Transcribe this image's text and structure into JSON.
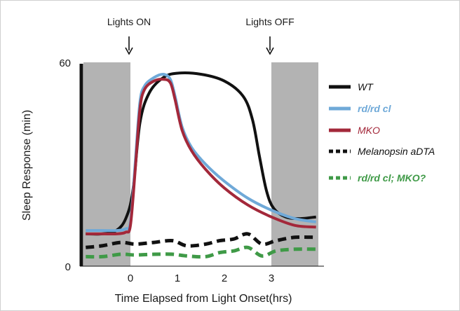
{
  "chart_data": {
    "type": "line",
    "title": "",
    "xlabel": "Time Elapsed from Light Onset(hrs)",
    "ylabel": "Sleep Response (min)",
    "xlim": [
      -1,
      4
    ],
    "ylim": [
      0,
      60
    ],
    "x_ticks": [
      "0",
      "1",
      "2",
      "3"
    ],
    "x_tick_values": [
      0,
      1,
      2,
      3
    ],
    "y_ticks": [
      "0",
      "60"
    ],
    "y_tick_values": [
      0,
      60
    ],
    "shaded_regions": [
      {
        "x_start": -1,
        "x_end": 0,
        "color": "#b3b3b3"
      },
      {
        "x_start": 3,
        "x_end": 4,
        "color": "#b3b3b3"
      }
    ],
    "annotations": [
      {
        "text": "Lights ON",
        "x": 0
      },
      {
        "text": "Lights OFF",
        "x": 3
      }
    ],
    "legend_position": "right",
    "series": [
      {
        "name": "WT",
        "color": "#111111",
        "style": "solid",
        "x": [
          -0.95,
          -0.6,
          -0.3,
          -0.1,
          0.05,
          0.2,
          0.4,
          0.7,
          1.0,
          1.5,
          2.0,
          2.4,
          2.6,
          2.75,
          2.9,
          3.05,
          3.3,
          3.6,
          3.95
        ],
        "y": [
          9.5,
          9.5,
          10.5,
          14,
          22,
          42,
          51,
          55.5,
          56.8,
          56.5,
          54.5,
          50,
          43,
          32,
          22,
          17,
          14.5,
          14,
          14.5
        ]
      },
      {
        "name": "rd/rd cl",
        "color": "#6fa9d8",
        "style": "solid",
        "x": [
          -0.95,
          -0.6,
          -0.3,
          -0.1,
          0.0,
          0.1,
          0.2,
          0.3,
          0.5,
          0.7,
          0.85,
          0.95,
          1.1,
          1.3,
          1.6,
          2.0,
          2.5,
          3.0,
          3.5,
          3.95
        ],
        "y": [
          10.5,
          10.5,
          10.5,
          11,
          13,
          30,
          48,
          53,
          55.5,
          56.5,
          55,
          50,
          41,
          35,
          30,
          25,
          20,
          16.5,
          14,
          13
        ]
      },
      {
        "name": "MKO",
        "color": "#a3283a",
        "style": "solid",
        "x": [
          -0.95,
          -0.6,
          -0.3,
          -0.1,
          0.0,
          0.1,
          0.2,
          0.3,
          0.5,
          0.7,
          0.85,
          0.95,
          1.1,
          1.3,
          1.6,
          2.0,
          2.5,
          3.0,
          3.5,
          3.95
        ],
        "y": [
          9.5,
          9.5,
          9.5,
          10,
          12,
          28,
          46,
          52,
          54.5,
          55,
          54,
          49,
          40,
          34,
          28.5,
          23,
          18,
          14.5,
          12,
          11.5
        ]
      },
      {
        "name": "Melanopsin aDTA",
        "color": "#111111",
        "style": "dashed",
        "x": [
          -0.95,
          -0.6,
          -0.2,
          0.1,
          0.5,
          0.9,
          1.2,
          1.6,
          1.9,
          2.2,
          2.5,
          2.8,
          3.1,
          3.5,
          3.95
        ],
        "y": [
          5.5,
          6,
          7,
          6.5,
          7,
          7.5,
          6,
          6.5,
          7.5,
          8,
          9.5,
          6.5,
          7.5,
          8.5,
          8.5
        ]
      },
      {
        "name": "rd/rd cl; MKO?",
        "color": "#3f9a47",
        "style": "dashed",
        "x": [
          -0.95,
          -0.6,
          -0.2,
          0.1,
          0.5,
          0.9,
          1.2,
          1.6,
          1.9,
          2.2,
          2.5,
          2.8,
          3.1,
          3.5,
          3.95
        ],
        "y": [
          2.8,
          2.8,
          3.5,
          3.3,
          3.5,
          3.5,
          3,
          2.8,
          4,
          4.5,
          5.5,
          3,
          4.5,
          5,
          5
        ]
      }
    ]
  }
}
